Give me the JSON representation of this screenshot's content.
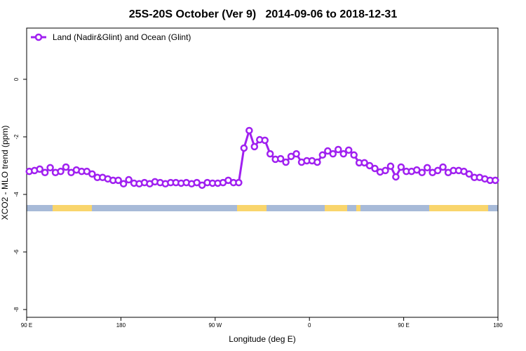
{
  "chart_data": {
    "type": "line",
    "title": "25S-20S October (Ver 9)   2014-09-06 to 2018-12-31",
    "x_label": "Longitude (deg E)",
    "y_label": "XCO2 - MLO trend (ppm)",
    "x": [
      92.5,
      97.5,
      102.5,
      107.5,
      112.5,
      117.5,
      122.5,
      127.5,
      132.5,
      137.5,
      142.5,
      147.5,
      152.5,
      157.5,
      162.5,
      167.5,
      172.5,
      177.5,
      182.5,
      187.5,
      192.5,
      197.5,
      202.5,
      207.5,
      212.5,
      217.5,
      222.5,
      227.5,
      232.5,
      237.5,
      242.5,
      247.5,
      252.5,
      257.5,
      262.5,
      267.5,
      272.5,
      277.5,
      282.5,
      287.5,
      292.5,
      297.5,
      302.5,
      307.5,
      312.5,
      317.5,
      322.5,
      327.5,
      332.5,
      337.5,
      342.5,
      347.5,
      352.5,
      357.5,
      362.5,
      367.5,
      372.5,
      377.5,
      382.5,
      387.5,
      392.5,
      397.5,
      402.5,
      407.5,
      412.5,
      417.5,
      422.5,
      427.5,
      432.5,
      437.5,
      442.5,
      447.5,
      452.5,
      457.5,
      462.5,
      467.5,
      472.5,
      477.5,
      482.5,
      487.5,
      492.5,
      497.5,
      502.5,
      507.5,
      512.5,
      517.5,
      522.5,
      527.5,
      532.5,
      537.5
    ],
    "series": [
      {
        "name": "Land (Nadir&Glint) and Ocean (Glint)",
        "color": "#a020f0",
        "values": [
          -3.2,
          -3.17,
          -3.12,
          -3.24,
          -3.07,
          -3.24,
          -3.2,
          -3.05,
          -3.24,
          -3.15,
          -3.2,
          -3.2,
          -3.29,
          -3.41,
          -3.41,
          -3.46,
          -3.51,
          -3.51,
          -3.63,
          -3.49,
          -3.61,
          -3.63,
          -3.59,
          -3.63,
          -3.56,
          -3.59,
          -3.63,
          -3.59,
          -3.59,
          -3.61,
          -3.59,
          -3.63,
          -3.59,
          -3.68,
          -3.59,
          -3.61,
          -3.61,
          -3.59,
          -3.51,
          -3.59,
          -3.59,
          -2.39,
          -1.78,
          -2.34,
          -2.1,
          -2.12,
          -2.59,
          -2.78,
          -2.76,
          -2.88,
          -2.68,
          -2.59,
          -2.88,
          -2.83,
          -2.83,
          -2.88,
          -2.63,
          -2.49,
          -2.59,
          -2.44,
          -2.59,
          -2.46,
          -2.63,
          -2.9,
          -2.9,
          -3.0,
          -3.1,
          -3.22,
          -3.17,
          -3.02,
          -3.39,
          -3.05,
          -3.2,
          -3.2,
          -3.15,
          -3.24,
          -3.07,
          -3.24,
          -3.17,
          -3.05,
          -3.24,
          -3.17,
          -3.17,
          -3.2,
          -3.29,
          -3.41,
          -3.41,
          -3.46,
          -3.51,
          -3.51
        ]
      }
    ],
    "xlim": [
      90,
      540
    ],
    "xticks": [
      {
        "value": 90,
        "label": "90 E"
      },
      {
        "value": 180,
        "label": "180"
      },
      {
        "value": 270,
        "label": "90 W"
      },
      {
        "value": 360,
        "label": "0"
      },
      {
        "value": 450,
        "label": "90 E"
      },
      {
        "value": 540,
        "label": "180"
      }
    ],
    "ylim": [
      -8.27,
      1.78
    ],
    "yticks": [
      -8,
      -6,
      -4,
      -2,
      0
    ],
    "legend_position": "top-left"
  }
}
